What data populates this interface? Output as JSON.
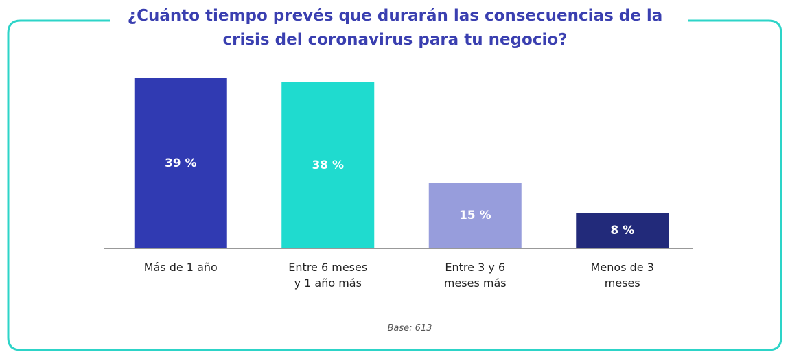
{
  "chart_data": {
    "type": "bar",
    "title": "¿Cuánto tiempo prevés que durarán las consecuencias de la\ncrisis del coronavirus para tu negocio?",
    "categories": [
      "Más de 1 año",
      "Entre 6 meses\ny 1 año más",
      "Entre 3 y 6\nmeses más",
      "Menos de 3\nmeses"
    ],
    "values": [
      39,
      38,
      15,
      8
    ],
    "value_labels": [
      "39 %",
      "38 %",
      "15 %",
      "8 %"
    ],
    "colors": [
      "#303ab2",
      "#1fdbcf",
      "#979ddc",
      "#222a7a"
    ],
    "note": "Base: 613"
  }
}
